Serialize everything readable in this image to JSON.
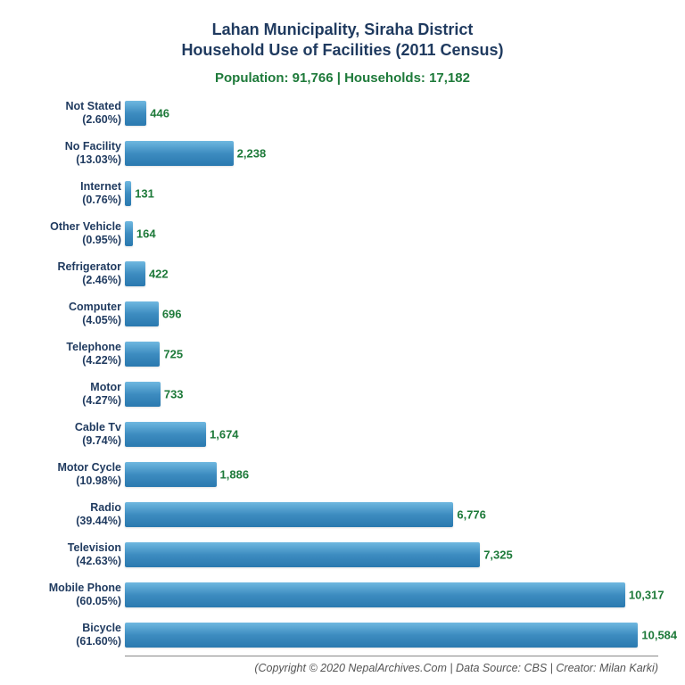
{
  "title": {
    "line1": "Lahan Municipality, Siraha District",
    "line2": "Household Use of Facilities (2011 Census)",
    "color": "#1f3a5f",
    "fontsize": 18
  },
  "subtitle": {
    "text": "Population: 91,766 | Households: 17,182",
    "color": "#1e7a3a",
    "fontsize": 15
  },
  "chart": {
    "type": "bar-horizontal",
    "xlim": [
      0,
      11000
    ],
    "bar_gradient": [
      "#6fb8e0",
      "#3d8cc0",
      "#2a79af"
    ],
    "label_color": "#1f3a5f",
    "value_color": "#1e7a3a",
    "label_fontsize": 12.5,
    "value_fontsize": 13,
    "background_color": "#ffffff",
    "bars": [
      {
        "name": "Not Stated",
        "percent": "2.60%",
        "value": 446,
        "display": "446"
      },
      {
        "name": "No Facility",
        "percent": "13.03%",
        "value": 2238,
        "display": "2,238"
      },
      {
        "name": "Internet",
        "percent": "0.76%",
        "value": 131,
        "display": "131"
      },
      {
        "name": "Other Vehicle",
        "percent": "0.95%",
        "value": 164,
        "display": "164"
      },
      {
        "name": "Refrigerator",
        "percent": "2.46%",
        "value": 422,
        "display": "422"
      },
      {
        "name": "Computer",
        "percent": "4.05%",
        "value": 696,
        "display": "696"
      },
      {
        "name": "Telephone",
        "percent": "4.22%",
        "value": 725,
        "display": "725"
      },
      {
        "name": "Motor",
        "percent": "4.27%",
        "value": 733,
        "display": "733"
      },
      {
        "name": "Cable Tv",
        "percent": "9.74%",
        "value": 1674,
        "display": "1,674"
      },
      {
        "name": "Motor Cycle",
        "percent": "10.98%",
        "value": 1886,
        "display": "1,886"
      },
      {
        "name": "Radio",
        "percent": "39.44%",
        "value": 6776,
        "display": "6,776"
      },
      {
        "name": "Television",
        "percent": "42.63%",
        "value": 7325,
        "display": "7,325"
      },
      {
        "name": "Mobile Phone",
        "percent": "60.05%",
        "value": 10317,
        "display": "10,317"
      },
      {
        "name": "Bicycle",
        "percent": "61.60%",
        "value": 10584,
        "display": "10,584"
      }
    ]
  },
  "footer": {
    "text": "(Copyright © 2020 NepalArchives.Com | Data Source: CBS | Creator: Milan Karki)",
    "color": "#555555",
    "fontsize": 12.5
  }
}
